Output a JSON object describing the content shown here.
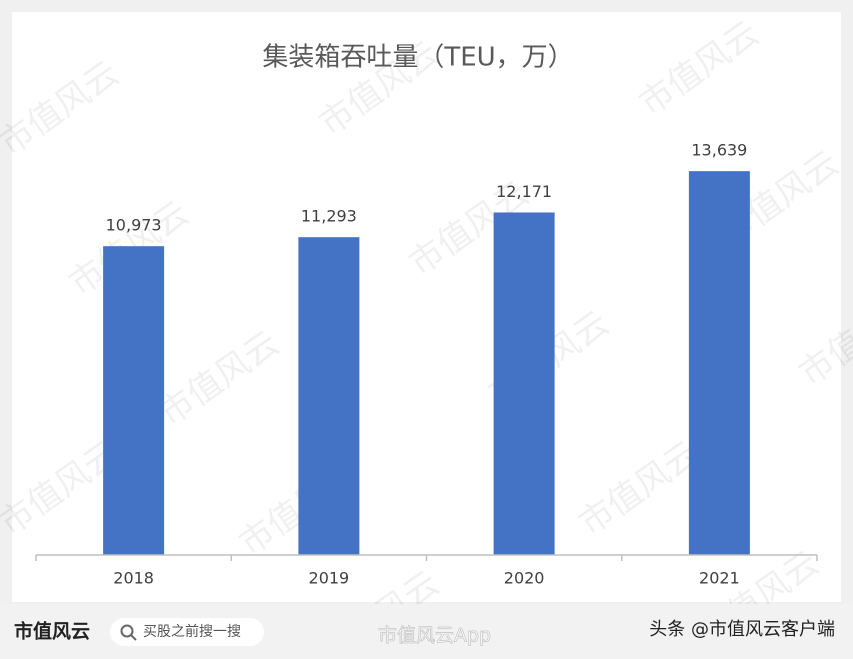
{
  "chart_data": {
    "type": "bar",
    "title": "集装箱吞吐量（TEU，万）",
    "categories": [
      "2018",
      "2019",
      "2020",
      "2021"
    ],
    "values": [
      10973,
      11293,
      12171,
      13639
    ],
    "value_labels": [
      "10,973",
      "11,293",
      "12,171",
      "13,639"
    ],
    "color": "#4472c4",
    "ylim": [
      0,
      14000
    ]
  },
  "watermark": "市值风云",
  "footer": {
    "logo": "市值风云",
    "search_placeholder": "买股之前搜一搜",
    "weibo": "市值风云App",
    "attribution": "头条 @市值风云客户端"
  }
}
